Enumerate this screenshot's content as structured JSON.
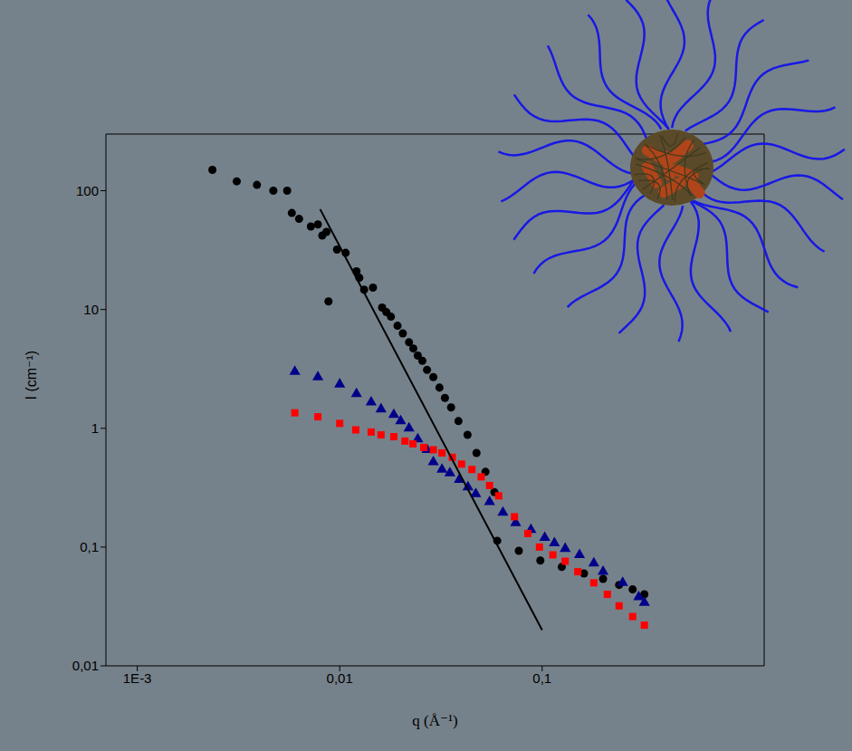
{
  "chart_data": {
    "type": "scatter",
    "x_label": "q (Å⁻¹)",
    "y_label": "I (cm⁻¹)",
    "log": true,
    "xlim": [
      0.0007,
      1.25
    ],
    "ylim": [
      0.01,
      300
    ],
    "xticks": [
      {
        "value": 0.001,
        "label": "1E-3"
      },
      {
        "value": 0.01,
        "label": "0,01"
      },
      {
        "value": 0.1,
        "label": "0,1"
      }
    ],
    "yticks": [
      {
        "value": 0.01,
        "label": "0,01"
      },
      {
        "value": 0.1,
        "label": "0,1"
      },
      1,
      10,
      100
    ],
    "series": [
      {
        "type": "scatter",
        "color": "#000000",
        "marker": "circle",
        "x": [
          0.00235,
          0.0031,
          0.0039,
          0.0047,
          0.0055,
          0.0058,
          0.0063,
          0.0072,
          0.0078,
          0.0082,
          0.0086,
          0.0088,
          0.0097,
          0.0107,
          0.0121,
          0.0125,
          0.0132,
          0.0146,
          0.0162,
          0.017,
          0.0179,
          0.0193,
          0.0205,
          0.022,
          0.0231,
          0.0243,
          0.0256,
          0.027,
          0.029,
          0.0311,
          0.0331,
          0.0355,
          0.0386,
          0.0428,
          0.0474,
          0.0525,
          0.0581,
          0.06,
          0.0767,
          0.098,
          0.125,
          0.161,
          0.2,
          0.24,
          0.28,
          0.32
        ],
        "values": [
          150,
          120,
          112,
          100,
          100,
          65,
          58,
          50,
          52,
          42,
          45,
          11.7,
          32,
          30,
          21,
          18.5,
          14.7,
          15.3,
          10.4,
          9.5,
          8.7,
          7.3,
          6.3,
          5.3,
          4.7,
          4.1,
          3.7,
          3.1,
          2.7,
          2.2,
          1.8,
          1.5,
          1.15,
          0.88,
          0.62,
          0.43,
          0.29,
          0.113,
          0.093,
          0.077,
          0.068,
          0.06,
          0.054,
          0.048,
          0.044,
          0.04
        ]
      },
      {
        "type": "scatter",
        "color": "#00008b",
        "marker": "triangle",
        "x": [
          0.006,
          0.0078,
          0.01,
          0.0121,
          0.0143,
          0.016,
          0.0185,
          0.02,
          0.022,
          0.0243,
          0.027,
          0.029,
          0.032,
          0.035,
          0.039,
          0.043,
          0.047,
          0.055,
          0.064,
          0.074,
          0.088,
          0.103,
          0.115,
          0.13,
          0.153,
          0.18,
          0.2,
          0.25,
          0.3,
          0.32
        ],
        "values": [
          3.0,
          2.7,
          2.35,
          1.95,
          1.66,
          1.45,
          1.3,
          1.15,
          1.0,
          0.81,
          0.66,
          0.52,
          0.45,
          0.42,
          0.37,
          0.32,
          0.28,
          0.24,
          0.195,
          0.16,
          0.14,
          0.12,
          0.108,
          0.097,
          0.086,
          0.073,
          0.062,
          0.05,
          0.038,
          0.034
        ]
      },
      {
        "type": "scatter",
        "color": "#ff0000",
        "marker": "square",
        "x": [
          0.006,
          0.0078,
          0.01,
          0.012,
          0.0143,
          0.016,
          0.0185,
          0.021,
          0.023,
          0.026,
          0.029,
          0.032,
          0.036,
          0.04,
          0.045,
          0.05,
          0.055,
          0.061,
          0.073,
          0.085,
          0.097,
          0.113,
          0.13,
          0.15,
          0.18,
          0.21,
          0.24,
          0.28,
          0.32
        ],
        "values": [
          1.35,
          1.25,
          1.1,
          0.97,
          0.93,
          0.88,
          0.85,
          0.78,
          0.74,
          0.69,
          0.66,
          0.62,
          0.57,
          0.5,
          0.45,
          0.39,
          0.33,
          0.27,
          0.18,
          0.13,
          0.1,
          0.086,
          0.076,
          0.062,
          0.05,
          0.04,
          0.032,
          0.026,
          0.022
        ]
      },
      {
        "type": "line",
        "color": "#000000",
        "line_style": "solid",
        "x": [
          0.008,
          0.1
        ],
        "values": [
          70,
          0.02
        ]
      }
    ]
  }
}
